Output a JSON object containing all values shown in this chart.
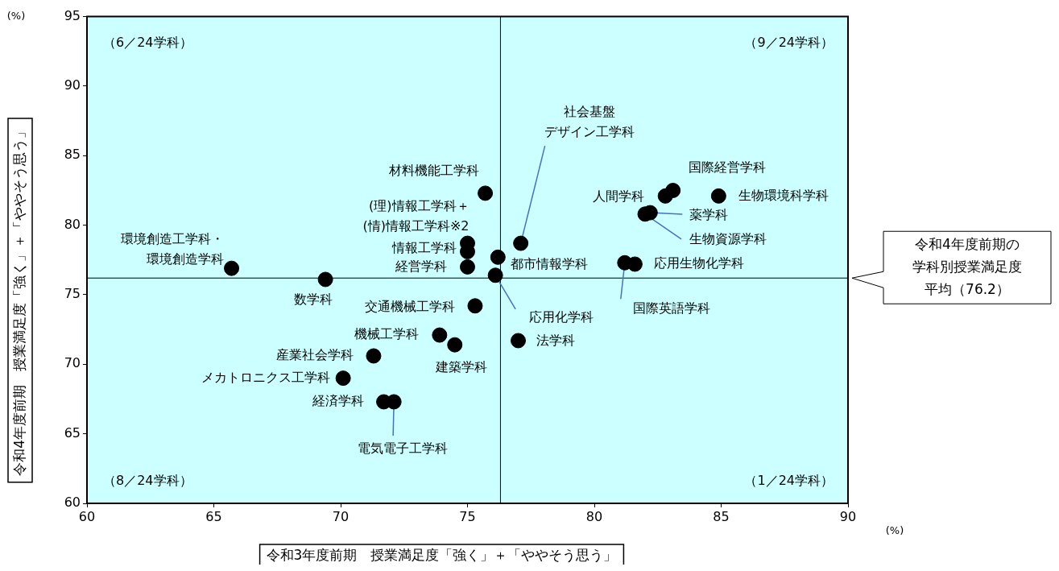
{
  "chart_data": {
    "type": "scatter",
    "xlabel": "令和3年度前期　授業満足度「強く」＋「ややそう思う」",
    "ylabel": "令和4年度前期　授業満足度「強く」＋「ややそう思う」",
    "x": [
      75.7,
      75.0,
      75.0,
      75.0,
      65.7,
      69.4,
      75.3,
      73.9,
      74.5,
      77.0,
      71.3,
      70.1,
      71.7,
      72.1,
      77.1,
      83.1,
      82.8,
      84.9,
      82.2,
      82.0,
      81.2,
      81.6,
      76.2,
      76.1
    ],
    "values": [
      82.3,
      78.7,
      78.1,
      77.0,
      76.9,
      76.1,
      74.2,
      72.1,
      71.4,
      71.7,
      70.6,
      69.0,
      67.3,
      67.3,
      78.7,
      82.5,
      82.1,
      82.1,
      80.9,
      80.8,
      77.3,
      77.2,
      77.7,
      76.4
    ],
    "color": "#000000",
    "marker": "circle",
    "xlim": [
      60,
      90
    ],
    "xticks": [
      60,
      65,
      70,
      75,
      80,
      85,
      90
    ],
    "ylim": [
      60,
      95
    ],
    "yticks": [
      60,
      65,
      70,
      75,
      80,
      85,
      90,
      95
    ],
    "grid": false,
    "legend": false,
    "ref_lines": [
      {
        "axis": "y",
        "value": 76.2,
        "label": "令和4年度前期の学科別授業満足度平均（76.2）",
        "color": "#000000"
      },
      {
        "axis": "x",
        "value": 76.3,
        "color": "#000000"
      }
    ],
    "annotations": [
      {
        "text": "材料機能工学科",
        "x": 75.7,
        "y": 82.3
      },
      {
        "text": "(理)情報工学科＋(情)情報工学科※2",
        "x": 75.0,
        "y": 78.7
      },
      {
        "text": "情報工学科",
        "x": 75.0,
        "y": 78.1
      },
      {
        "text": "経営学科",
        "x": 75.0,
        "y": 77.0
      },
      {
        "text": "環境創造工学科・環境創造学科",
        "x": 65.7,
        "y": 76.9
      },
      {
        "text": "数学科",
        "x": 69.4,
        "y": 76.1
      },
      {
        "text": "交通機械工学科",
        "x": 75.3,
        "y": 74.2
      },
      {
        "text": "機械工学科",
        "x": 73.9,
        "y": 72.1
      },
      {
        "text": "建築学科",
        "x": 74.5,
        "y": 71.4
      },
      {
        "text": "法学科",
        "x": 77.0,
        "y": 71.7
      },
      {
        "text": "産業社会学科",
        "x": 71.3,
        "y": 70.6
      },
      {
        "text": "メカトロニクス工学科",
        "x": 70.1,
        "y": 69.0
      },
      {
        "text": "経済学科",
        "x": 71.7,
        "y": 67.3
      },
      {
        "text": "電気電子工学科",
        "x": 72.1,
        "y": 67.3
      },
      {
        "text": "社会基盤デザイン工学科",
        "x": 77.1,
        "y": 78.7
      },
      {
        "text": "国際経営学科",
        "x": 83.1,
        "y": 82.5
      },
      {
        "text": "人間学科",
        "x": 82.8,
        "y": 82.1
      },
      {
        "text": "生物環境科学科",
        "x": 84.9,
        "y": 82.1
      },
      {
        "text": "薬学科",
        "x": 82.2,
        "y": 80.9
      },
      {
        "text": "生物資源学科",
        "x": 82.0,
        "y": 80.8
      },
      {
        "text": "国際英語学科",
        "x": 81.2,
        "y": 77.3
      },
      {
        "text": "応用生物化学科",
        "x": 81.6,
        "y": 77.2
      },
      {
        "text": "都市情報学科",
        "x": 76.2,
        "y": 77.7
      },
      {
        "text": "応用化学科",
        "x": 76.1,
        "y": 76.4
      },
      "（6／24学科）",
      "（9／24学科）",
      "（8／24学科）",
      "（1／24学科）",
      "(%)",
      "(%)"
    ]
  }
}
